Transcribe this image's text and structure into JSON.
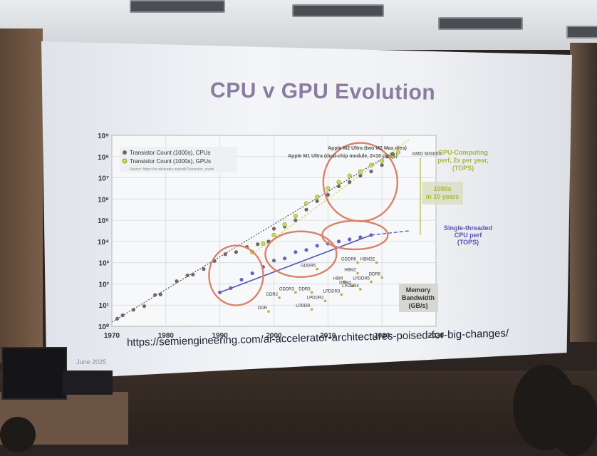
{
  "slide": {
    "title": "CPU v GPU Evolution",
    "url": "https://semiengineering.com/ai-accelerator-architectures-poised-for-big-changes/",
    "date": "June 2025"
  },
  "chart_data": {
    "type": "scatter",
    "x_ticks": [
      "1970",
      "1980",
      "1990",
      "2000",
      "2010",
      "2020",
      "2030"
    ],
    "y_ticks": [
      "10⁰",
      "10¹",
      "10²",
      "10³",
      "10⁴",
      "10⁵",
      "10⁶",
      "10⁷",
      "10⁸",
      "10⁹"
    ],
    "xlim": [
      1970,
      2030
    ],
    "ylim": [
      0,
      9
    ],
    "y_scale": "log",
    "grid": true,
    "legend": {
      "cpu": "Transistor Count (1000s), CPUs",
      "gpu": "Transistor Count (1000s), GPUs",
      "source": "Source: https://en.wikipedia.org/wiki/Transistor_count"
    },
    "annotations": {
      "m2_ultra": "Apple M2 Ultra (two M2 Max dies)",
      "m1_ultra": "Apple M1 Ultra (dual-chip module, 2×10 cores)",
      "amd": "AMD MI300X",
      "gpu_perf": [
        "GPU-Computing",
        "perf, 2x per year,",
        "(TOPS)"
      ],
      "thousandx": [
        "1000x",
        "in 10 years"
      ],
      "cpu_perf": [
        "Single-threaded",
        "CPU perf",
        "(TOPS)"
      ],
      "memory": [
        "Memory",
        "Bandwidth",
        "(GB/s)"
      ]
    },
    "memory_labels": [
      {
        "text": "DDR",
        "x": 1999,
        "y": 0.7
      },
      {
        "text": "DDR2",
        "x": 2001,
        "y": 1.35
      },
      {
        "text": "GDDR3",
        "x": 2004,
        "y": 1.6
      },
      {
        "text": "DDR3",
        "x": 2007,
        "y": 1.6
      },
      {
        "text": "LPDDR",
        "x": 2007,
        "y": 0.8
      },
      {
        "text": "LPDDR2",
        "x": 2009.5,
        "y": 1.2
      },
      {
        "text": "LPDDR3",
        "x": 2012.5,
        "y": 1.5
      },
      {
        "text": "GDDR5",
        "x": 2008,
        "y": 2.7
      },
      {
        "text": "HBM",
        "x": 2013,
        "y": 2.1
      },
      {
        "text": "HBM2",
        "x": 2015.5,
        "y": 2.5
      },
      {
        "text": "GDDR6",
        "x": 2015.5,
        "y": 3.0
      },
      {
        "text": "HBM2E",
        "x": 2019,
        "y": 3.0
      },
      {
        "text": "DDR4",
        "x": 2014.5,
        "y": 1.9
      },
      {
        "text": "LPDDR4",
        "x": 2016,
        "y": 1.75
      },
      {
        "text": "LPDDR5",
        "x": 2018,
        "y": 2.1
      },
      {
        "text": "DDR5",
        "x": 2020,
        "y": 2.3
      }
    ],
    "series": [
      {
        "name": "Transistor Count (1000s), CPUs",
        "color": "#6e6866",
        "points": [
          [
            1971,
            0.36
          ],
          [
            1972,
            0.52
          ],
          [
            1974,
            0.78
          ],
          [
            1976,
            0.95
          ],
          [
            1978,
            1.48
          ],
          [
            1979,
            1.5
          ],
          [
            1982,
            2.13
          ],
          [
            1984,
            2.4
          ],
          [
            1985,
            2.44
          ],
          [
            1987,
            2.7
          ],
          [
            1989,
            3.08
          ],
          [
            1991,
            3.4
          ],
          [
            1993,
            3.5
          ],
          [
            1995,
            3.74
          ],
          [
            1997,
            3.87
          ],
          [
            1999,
            4.0
          ],
          [
            2000,
            4.6
          ],
          [
            2002,
            4.7
          ],
          [
            2004,
            5.0
          ],
          [
            2006,
            5.5
          ],
          [
            2008,
            5.9
          ],
          [
            2010,
            6.2
          ],
          [
            2012,
            6.6
          ],
          [
            2014,
            6.8
          ],
          [
            2016,
            7.1
          ],
          [
            2018,
            7.3
          ],
          [
            2020,
            7.6
          ],
          [
            2021,
            8.0
          ],
          [
            2022,
            8.13
          ]
        ]
      },
      {
        "name": "Transistor Count (1000s), GPUs",
        "color": "#c8d85a",
        "points": [
          [
            1996,
            3.5
          ],
          [
            1998,
            3.9
          ],
          [
            2000,
            4.3
          ],
          [
            2002,
            4.8
          ],
          [
            2004,
            5.2
          ],
          [
            2006,
            5.8
          ],
          [
            2008,
            6.1
          ],
          [
            2010,
            6.5
          ],
          [
            2012,
            6.8
          ],
          [
            2014,
            7.1
          ],
          [
            2016,
            7.3
          ],
          [
            2018,
            7.6
          ],
          [
            2020,
            7.8
          ],
          [
            2022,
            8.0
          ],
          [
            2023,
            8.2
          ]
        ]
      },
      {
        "name": "Single-threaded CPU perf (TOPS)",
        "color": "#6b62b8",
        "points": [
          [
            1990,
            1.6
          ],
          [
            1992,
            1.8
          ],
          [
            1994,
            2.2
          ],
          [
            1996,
            2.5
          ],
          [
            1998,
            2.8
          ],
          [
            2000,
            3.1
          ],
          [
            2002,
            3.2
          ],
          [
            2004,
            3.5
          ],
          [
            2006,
            3.6
          ],
          [
            2008,
            3.8
          ],
          [
            2010,
            3.9
          ],
          [
            2012,
            4.0
          ],
          [
            2014,
            4.1
          ],
          [
            2016,
            4.2
          ],
          [
            2018,
            4.3
          ]
        ]
      }
    ]
  }
}
